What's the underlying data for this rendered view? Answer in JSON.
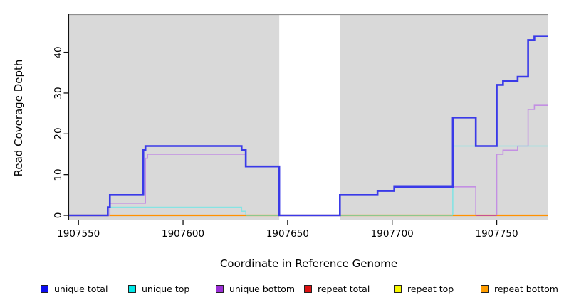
{
  "ylabel": "Read Coverage Depth",
  "xlabel": "Coordinate in Reference Genome",
  "legend": {
    "items": [
      {
        "label": "unique total",
        "color": "#0d0dee"
      },
      {
        "label": "unique top",
        "color": "#00e8e8"
      },
      {
        "label": "unique bottom",
        "color": "#9b2fd6"
      },
      {
        "label": "repeat total",
        "color": "#dd1111"
      },
      {
        "label": "repeat top",
        "color": "#f8f800"
      },
      {
        "label": "repeat bottom",
        "color": "#ff9d00"
      }
    ]
  },
  "chart_data": {
    "type": "line",
    "step": "after",
    "title": "",
    "xlabel": "Coordinate in Reference Genome",
    "ylabel": "Read Coverage Depth",
    "xlim": [
      1907545.5,
      1907774.5
    ],
    "ylim": [
      0,
      49
    ],
    "x_ticks": [
      1907550,
      1907600,
      1907650,
      1907700,
      1907750
    ],
    "y_ticks": [
      0,
      10,
      20,
      30,
      40
    ],
    "grid": false,
    "legend_position": "bottom",
    "plot_background": "#d9d9d9",
    "no_data_region": [
      1907646,
      1907675
    ],
    "series": [
      {
        "name": "repeat total",
        "line_color": "#dd1111",
        "width": 1.5,
        "points": [
          [
            1907546,
            0
          ],
          [
            1907774,
            0
          ]
        ]
      },
      {
        "name": "repeat top",
        "line_color": "#f8f800",
        "width": 1.5,
        "points": [
          [
            1907546,
            0
          ],
          [
            1907774,
            0
          ]
        ]
      },
      {
        "name": "repeat bottom",
        "line_color": "#ff9100",
        "width": 2.2,
        "points": [
          [
            1907546,
            0
          ],
          [
            1907774,
            0
          ]
        ]
      },
      {
        "name": "unique bottom",
        "line_color": "#c38fe3",
        "width": 1.6,
        "points": [
          [
            1907546,
            0
          ],
          [
            1907565,
            3
          ],
          [
            1907582,
            14
          ],
          [
            1907583,
            15
          ],
          [
            1907630,
            12
          ],
          [
            1907646,
            0
          ],
          [
            1907675,
            5
          ],
          [
            1907693,
            6
          ],
          [
            1907701,
            7
          ],
          [
            1907729,
            7
          ],
          [
            1907740,
            0
          ],
          [
            1907750,
            15
          ],
          [
            1907753,
            16
          ],
          [
            1907760,
            17
          ],
          [
            1907765,
            26
          ],
          [
            1907768,
            27
          ],
          [
            1907774,
            27
          ]
        ]
      },
      {
        "name": "unique top",
        "line_color": "#86e3e3",
        "width": 1.6,
        "points": [
          [
            1907546,
            0
          ],
          [
            1907564,
            2
          ],
          [
            1907628,
            1
          ],
          [
            1907630,
            0
          ],
          [
            1907729,
            17
          ],
          [
            1907774,
            17
          ]
        ]
      },
      {
        "name": "unique total",
        "line_color": "#3a3ae8",
        "width": 2.6,
        "points": [
          [
            1907546,
            0
          ],
          [
            1907564,
            2
          ],
          [
            1907565,
            5
          ],
          [
            1907581,
            16
          ],
          [
            1907582,
            17
          ],
          [
            1907628,
            16
          ],
          [
            1907630,
            12
          ],
          [
            1907646,
            0
          ],
          [
            1907675,
            5
          ],
          [
            1907693,
            6
          ],
          [
            1907701,
            7
          ],
          [
            1907729,
            24
          ],
          [
            1907740,
            17
          ],
          [
            1907750,
            32
          ],
          [
            1907753,
            33
          ],
          [
            1907760,
            34
          ],
          [
            1907765,
            43
          ],
          [
            1907768,
            44
          ],
          [
            1907774,
            44
          ]
        ]
      }
    ],
    "zero_line_segments": [
      {
        "from": 1907565,
        "to": 1907630,
        "color": "#ff9100"
      },
      {
        "from": 1907630,
        "to": 1907646,
        "color": "#8cc88c"
      },
      {
        "from": 1907675,
        "to": 1907729,
        "color": "#8cc88c"
      },
      {
        "from": 1907729,
        "to": 1907740,
        "color": "#ff9100"
      },
      {
        "from": 1907740,
        "to": 1907750,
        "color": "#c85090"
      },
      {
        "from": 1907750,
        "to": 1907775,
        "color": "#ff9100"
      }
    ]
  }
}
